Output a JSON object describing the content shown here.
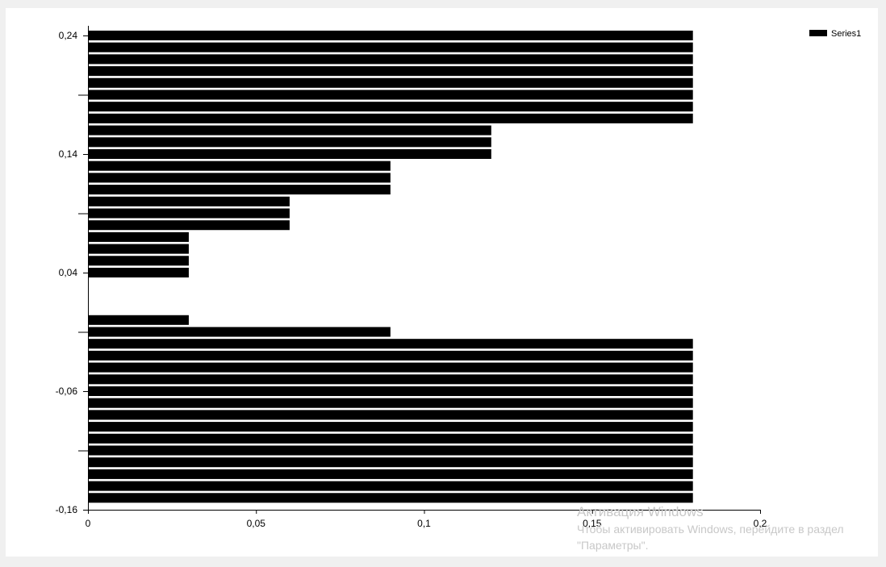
{
  "chart_data": {
    "type": "bar",
    "orientation": "horizontal",
    "series": [
      {
        "name": "Series1",
        "color": "#000000"
      }
    ],
    "bars": [
      {
        "y": 0.24,
        "value": 0.18
      },
      {
        "y": 0.23,
        "value": 0.18
      },
      {
        "y": 0.22,
        "value": 0.18
      },
      {
        "y": 0.21,
        "value": 0.18
      },
      {
        "y": 0.2,
        "value": 0.18
      },
      {
        "y": 0.19,
        "value": 0.18
      },
      {
        "y": 0.18,
        "value": 0.18
      },
      {
        "y": 0.17,
        "value": 0.18
      },
      {
        "y": 0.16,
        "value": 0.12
      },
      {
        "y": 0.15,
        "value": 0.12
      },
      {
        "y": 0.14,
        "value": 0.12
      },
      {
        "y": 0.13,
        "value": 0.09
      },
      {
        "y": 0.12,
        "value": 0.09
      },
      {
        "y": 0.11,
        "value": 0.09
      },
      {
        "y": 0.1,
        "value": 0.06
      },
      {
        "y": 0.09,
        "value": 0.06
      },
      {
        "y": 0.08,
        "value": 0.06
      },
      {
        "y": 0.07,
        "value": 0.03
      },
      {
        "y": 0.06,
        "value": 0.03
      },
      {
        "y": 0.05,
        "value": 0.03
      },
      {
        "y": 0.04,
        "value": 0.03
      },
      {
        "y": 0.0,
        "value": 0.03
      },
      {
        "y": -0.01,
        "value": 0.09
      },
      {
        "y": -0.02,
        "value": 0.18
      },
      {
        "y": -0.03,
        "value": 0.18
      },
      {
        "y": -0.04,
        "value": 0.18
      },
      {
        "y": -0.05,
        "value": 0.18
      },
      {
        "y": -0.06,
        "value": 0.18
      },
      {
        "y": -0.07,
        "value": 0.18
      },
      {
        "y": -0.08,
        "value": 0.18
      },
      {
        "y": -0.09,
        "value": 0.18
      },
      {
        "y": -0.1,
        "value": 0.18
      },
      {
        "y": -0.11,
        "value": 0.18
      },
      {
        "y": -0.12,
        "value": 0.18
      },
      {
        "y": -0.13,
        "value": 0.18
      },
      {
        "y": -0.14,
        "value": 0.18
      },
      {
        "y": -0.15,
        "value": 0.18
      }
    ],
    "x_axis": {
      "range": [
        0,
        0.2
      ],
      "ticks": [
        0,
        0.05,
        0.1,
        0.15,
        0.2
      ],
      "tick_labels": [
        "0",
        "0,05",
        "0,1",
        "0,15",
        "0,2"
      ]
    },
    "y_axis": {
      "range": [
        -0.16,
        0.24
      ],
      "labeled_ticks": [
        0.24,
        0.14,
        0.04,
        -0.06,
        -0.16
      ],
      "tick_labels": [
        "0,24",
        "0,14",
        "0,04",
        "-0,06",
        "-0,16"
      ],
      "minor_ticks": [
        0.19,
        0.09,
        -0.01,
        -0.11
      ]
    },
    "legend": {
      "placement": "top-right",
      "entries": [
        "Series1"
      ]
    },
    "grid": false,
    "title": "",
    "xlabel": "",
    "ylabel": ""
  },
  "watermark": {
    "title": "Активация Windows",
    "line1": "Чтобы активировать Windows, перейдите в раздел",
    "line2": "\"Параметры\"."
  }
}
